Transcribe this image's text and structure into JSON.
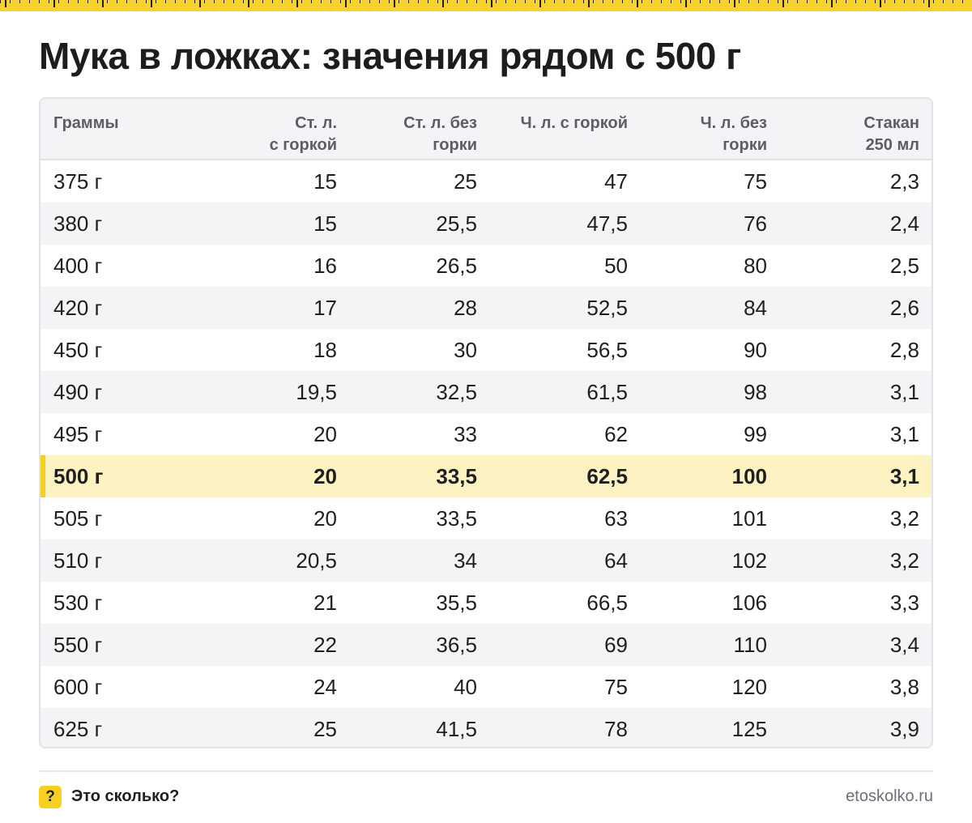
{
  "title": "Мука в ложках: значения рядом с 500 г",
  "table": {
    "headers": [
      "Граммы",
      "Ст. л.\nс горкой",
      "Ст. л. без\nгорки",
      "Ч. л. с горкой",
      "Ч. л. без\nгорки",
      "Стакан\n250 мл"
    ],
    "highlight_row": 7,
    "rows": [
      [
        "375 г",
        "15",
        "25",
        "47",
        "75",
        "2,3"
      ],
      [
        "380 г",
        "15",
        "25,5",
        "47,5",
        "76",
        "2,4"
      ],
      [
        "400 г",
        "16",
        "26,5",
        "50",
        "80",
        "2,5"
      ],
      [
        "420 г",
        "17",
        "28",
        "52,5",
        "84",
        "2,6"
      ],
      [
        "450 г",
        "18",
        "30",
        "56,5",
        "90",
        "2,8"
      ],
      [
        "490 г",
        "19,5",
        "32,5",
        "61,5",
        "98",
        "3,1"
      ],
      [
        "495 г",
        "20",
        "33",
        "62",
        "99",
        "3,1"
      ],
      [
        "500 г",
        "20",
        "33,5",
        "62,5",
        "100",
        "3,1"
      ],
      [
        "505 г",
        "20",
        "33,5",
        "63",
        "101",
        "3,2"
      ],
      [
        "510 г",
        "20,5",
        "34",
        "64",
        "102",
        "3,2"
      ],
      [
        "530 г",
        "21",
        "35,5",
        "66,5",
        "106",
        "3,3"
      ],
      [
        "550 г",
        "22",
        "36,5",
        "69",
        "110",
        "3,4"
      ],
      [
        "600 г",
        "24",
        "40",
        "75",
        "120",
        "3,8"
      ],
      [
        "625 г",
        "25",
        "41,5",
        "78",
        "125",
        "3,9"
      ]
    ]
  },
  "footer": {
    "badge": "?",
    "brand": "Это сколько?",
    "site": "etoskolko.ru"
  },
  "colors": {
    "accent": "#f7cf1f",
    "highlight_bg": "#fdf3c2",
    "header_bg": "#f4f4f6",
    "stripe_bg": "#f4f4f6"
  }
}
